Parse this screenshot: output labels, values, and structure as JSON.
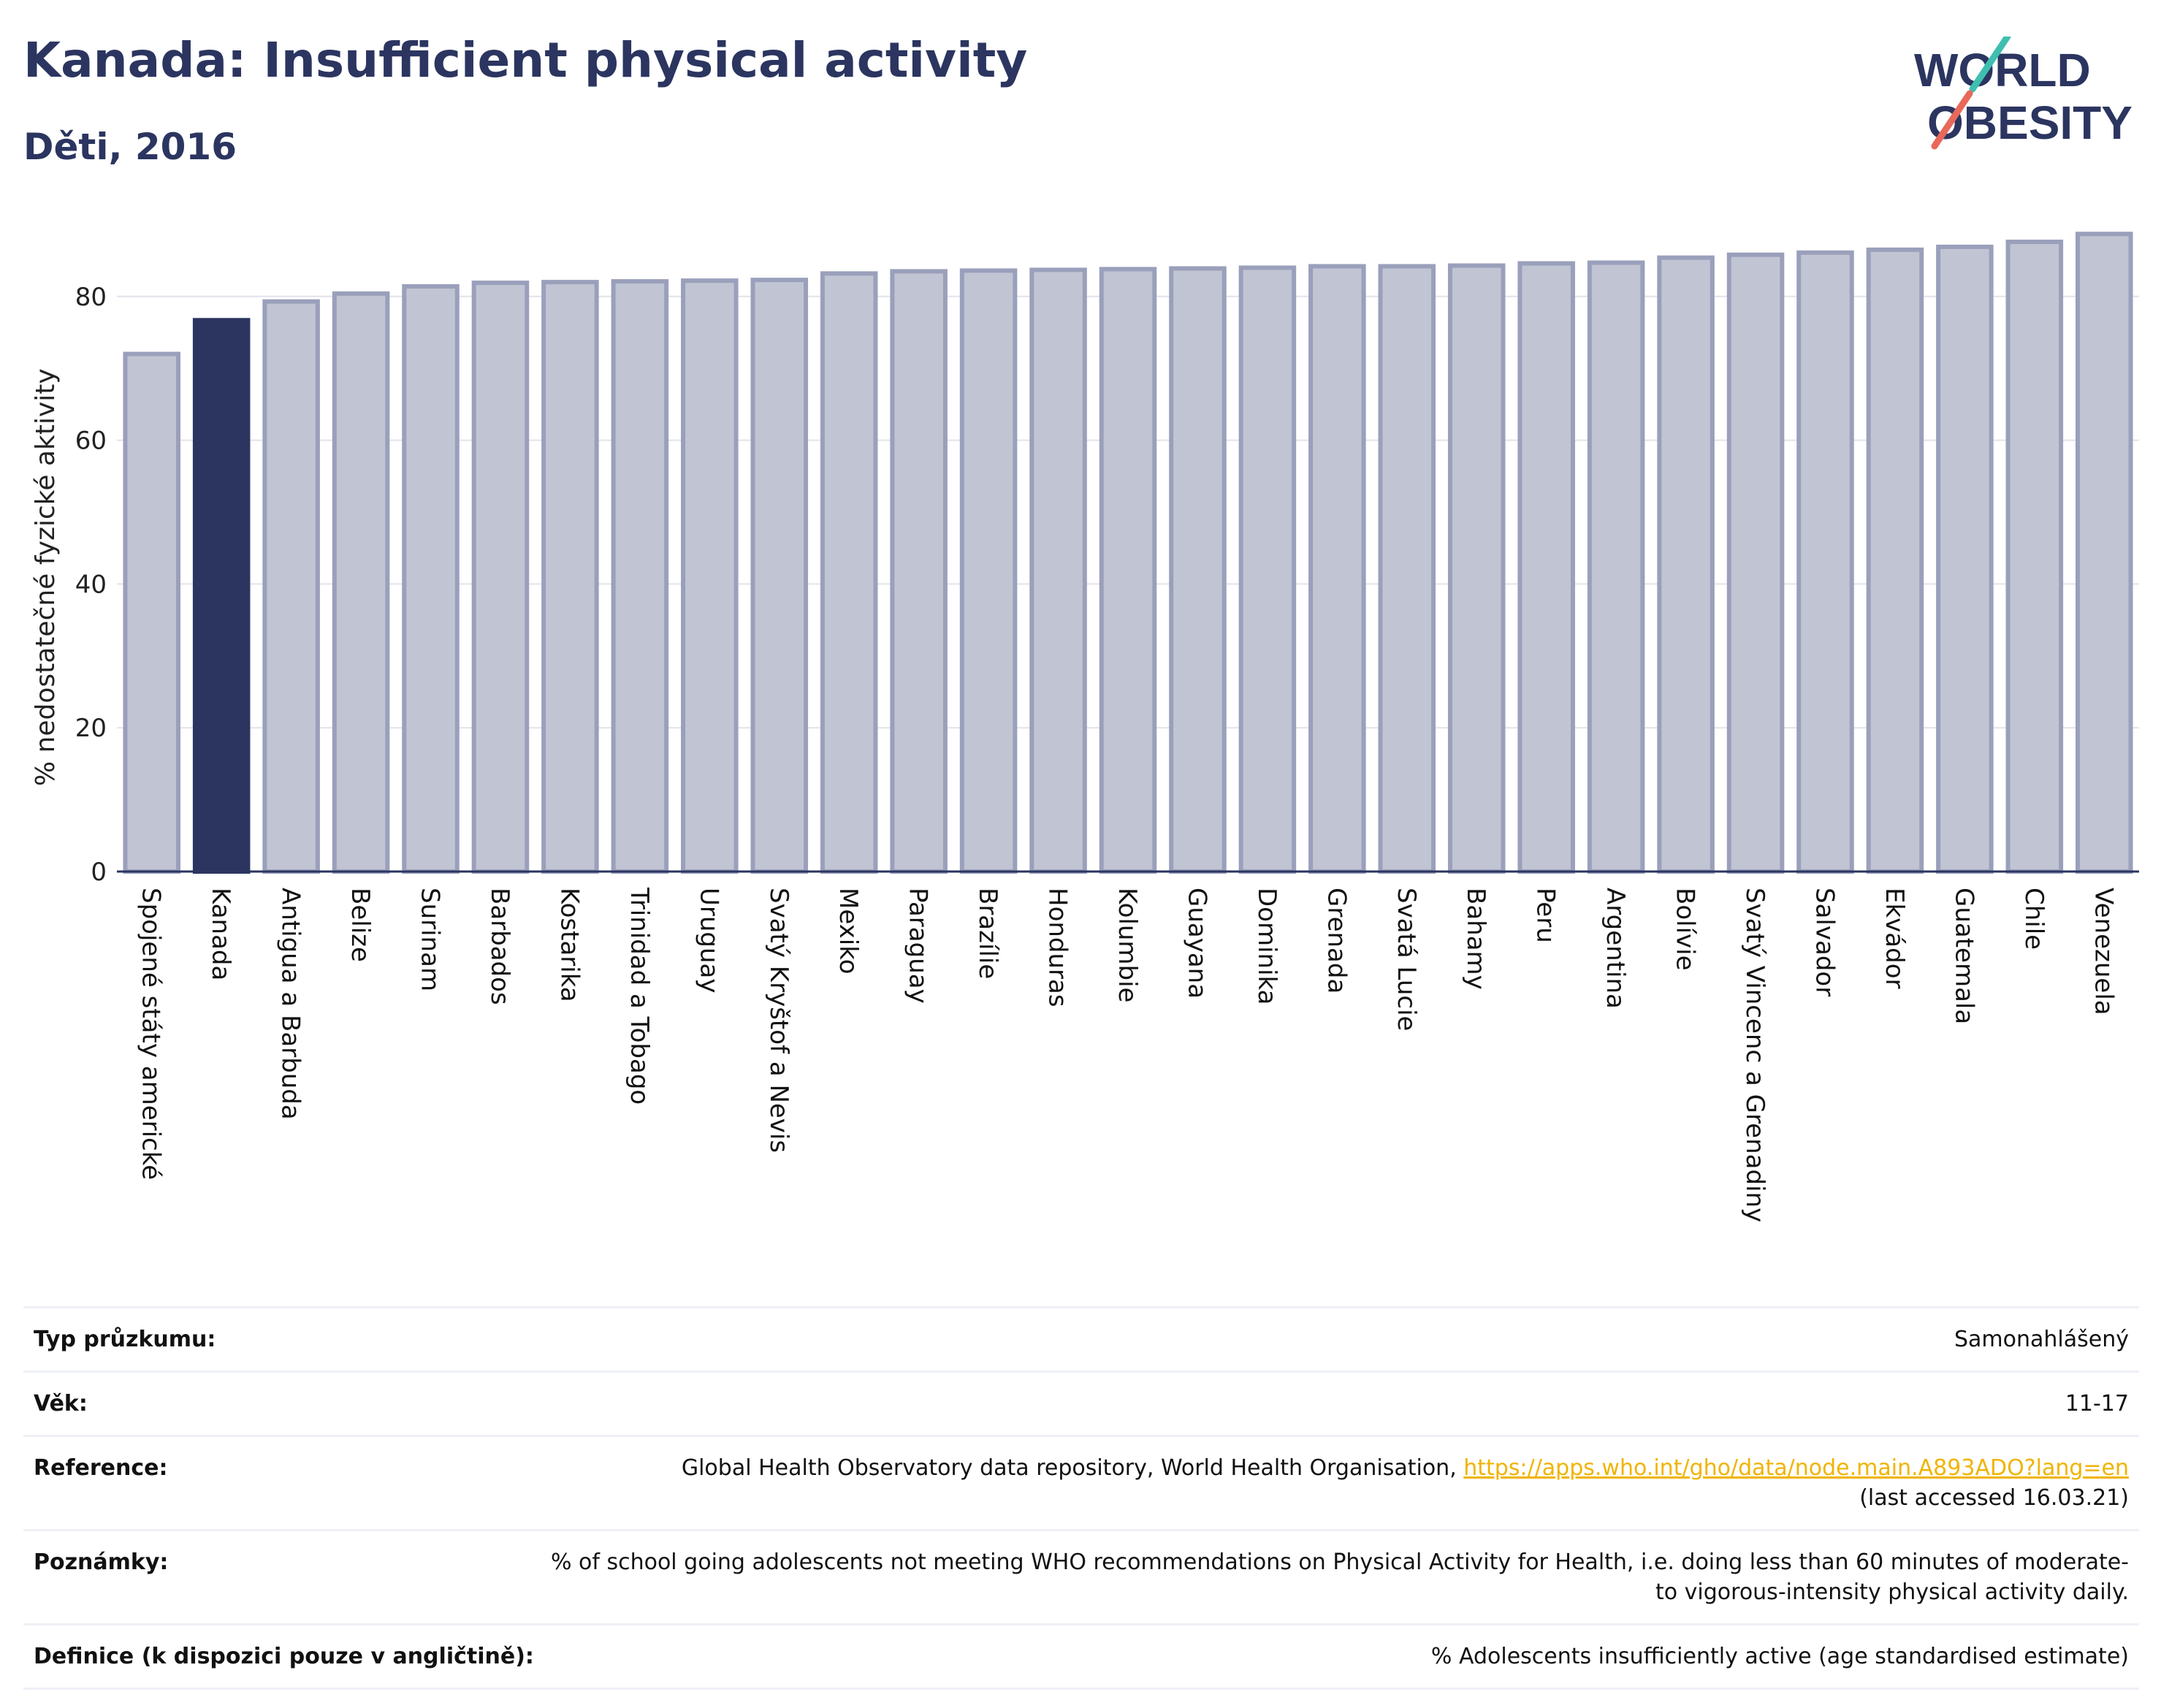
{
  "header": {
    "title": "Kanada: Insufficient physical activity",
    "subtitle": "Děti, 2016"
  },
  "logo": {
    "line1": "WORLD",
    "line2": "OBESITY",
    "text_color": "#2b3560",
    "slash_colors": [
      "#3fbfb0",
      "#e8685a"
    ]
  },
  "chart_data": {
    "type": "bar",
    "ylabel": "% nedostatečné fyzické aktivity",
    "ylim": [
      0,
      90
    ],
    "yticks": [
      0,
      20,
      40,
      60,
      80
    ],
    "grid": true,
    "categories": [
      "Spojené státy americké",
      "Kanada",
      "Antigua a Barbuda",
      "Belize",
      "Surinam",
      "Barbados",
      "Kostarika",
      "Trinidad a Tobago",
      "Uruguay",
      "Svatý Kryštof a Nevis",
      "Mexiko",
      "Paraguay",
      "Brazílie",
      "Honduras",
      "Kolumbie",
      "Guayana",
      "Dominika",
      "Grenada",
      "Svatá Lucie",
      "Bahamy",
      "Peru",
      "Argentina",
      "Bolívie",
      "Svatý Vincenc a Grenadiny",
      "Salvador",
      "Ekvádor",
      "Guatemala",
      "Chile",
      "Venezuela"
    ],
    "values": [
      72.0,
      76.7,
      79.3,
      80.4,
      81.4,
      81.9,
      82.0,
      82.1,
      82.2,
      82.3,
      83.2,
      83.5,
      83.6,
      83.7,
      83.8,
      83.9,
      84.0,
      84.2,
      84.2,
      84.3,
      84.6,
      84.7,
      85.4,
      85.8,
      86.1,
      86.5,
      86.9,
      87.6,
      88.7
    ],
    "highlight": "Kanada",
    "colors": {
      "bar": "#c1c4d2",
      "bar_edge": "#9aa0bb",
      "highlight": "#2b3560"
    }
  },
  "info": [
    {
      "label": "Typ průzkumu:",
      "value": "Samonahlášený"
    },
    {
      "label": "Věk:",
      "value": "11-17"
    },
    {
      "label": "Reference:",
      "value": "Global Health Observatory data repository, World Health Organisation, ",
      "link": "https://apps.who.int/gho/data/node.main.A893ADO?lang=en",
      "value2": "(last accessed 16.03.21)"
    },
    {
      "label": "Poznámky:",
      "value": "% of school going adolescents not meeting WHO recommendations on Physical Activity for Health, i.e. doing less than 60 minutes of moderate- to vigorous-intensity physical activity daily."
    },
    {
      "label": "Definice (k dispozici pouze v angličtině):",
      "value": "% Adolescents insufficiently active (age standardised estimate)"
    }
  ]
}
